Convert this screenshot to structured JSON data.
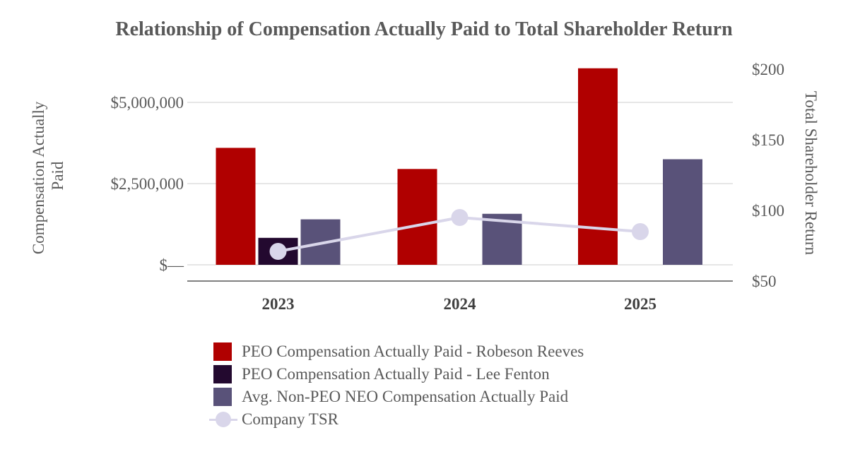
{
  "chart_data": {
    "type": "bar",
    "title": "Relationship of Compensation Actually Paid to Total Shareholder Return",
    "categories": [
      "2023",
      "2024",
      "2025"
    ],
    "y_left": {
      "label": "Compensation Actually Paid",
      "range": [
        0,
        6000000
      ],
      "ticks": [
        0,
        2500000,
        5000000
      ],
      "tick_labels": [
        "$—",
        "$2,500,000",
        "$5,000,000"
      ]
    },
    "y_right": {
      "label": "Total Shareholder Return",
      "range": [
        50,
        200
      ],
      "ticks": [
        50,
        100,
        150,
        200
      ],
      "tick_labels": [
        "$50",
        "$100",
        "$150",
        "$200"
      ]
    },
    "grid": true,
    "legend_position": "bottom",
    "series": [
      {
        "name": "PEO Compensation Actually Paid - Robeson Reeves",
        "type": "bar",
        "axis": "left",
        "color": "#b00000",
        "values": [
          3600000,
          2950000,
          6050000
        ]
      },
      {
        "name": "PEO Compensation Actually Paid - Lee Fenton",
        "type": "bar",
        "axis": "left",
        "color": "#23092f",
        "values": [
          830000,
          null,
          null
        ]
      },
      {
        "name": "Avg. Non-PEO NEO Compensation Actually Paid",
        "type": "bar",
        "axis": "left",
        "color": "#595279",
        "values": [
          1400000,
          1570000,
          3250000
        ]
      },
      {
        "name": "Company TSR",
        "type": "line",
        "axis": "right",
        "color": "#d9d6ea",
        "values": [
          71,
          95,
          85
        ]
      }
    ]
  }
}
